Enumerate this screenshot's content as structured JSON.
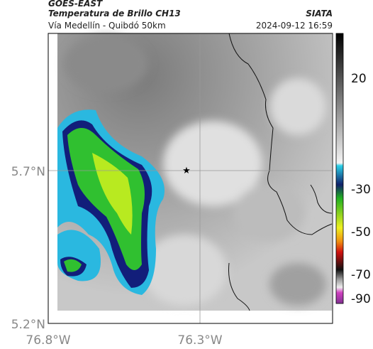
{
  "header": {
    "source": "GOES-EAST",
    "title": "Temperatura de Brillo CH13",
    "organization": "SIATA",
    "route": "Vía Medellín - Quibdó 50km",
    "timestamp": "2024-09-12 16:59"
  },
  "map": {
    "lat_labels": [
      "5.7°N",
      "5.2°N"
    ],
    "lon_labels": [
      "76.8°W",
      "76.3°W"
    ]
  },
  "colorbar": {
    "tick_labels": [
      "20",
      "-30",
      "-50",
      "-70",
      "-90"
    ]
  }
}
